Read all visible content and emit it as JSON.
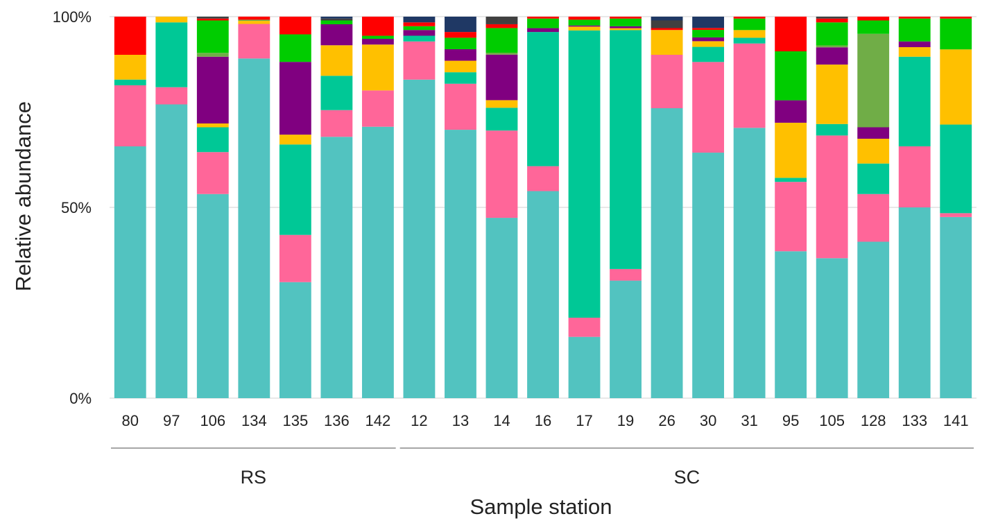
{
  "chart_data": {
    "type": "bar",
    "stacked": true,
    "normalized": true,
    "title": "",
    "xlabel": "Sample station",
    "ylabel": "Relative abundance",
    "ylim": [
      0,
      100
    ],
    "yticks": [
      {
        "value": 0,
        "label": "0%"
      },
      {
        "value": 50,
        "label": "50%"
      },
      {
        "value": 100,
        "label": "100%"
      }
    ],
    "grid": "horizontal",
    "legend": "none",
    "categories": [
      "80",
      "97",
      "106",
      "134",
      "135",
      "136",
      "142",
      "12",
      "13",
      "14",
      "16",
      "17",
      "19",
      "26",
      "30",
      "31",
      "95",
      "105",
      "128",
      "133",
      "141"
    ],
    "groups": [
      {
        "label": "RS",
        "start": 0,
        "end": 6
      },
      {
        "label": "SC",
        "start": 7,
        "end": 20
      }
    ],
    "series": [
      {
        "color": "#52c3c0",
        "values": [
          66,
          77,
          53.5,
          88.5,
          29.5,
          68.5,
          71,
          83.5,
          70,
          47.5,
          54,
          16,
          30.5,
          76,
          65,
          70.5,
          36,
          36.5,
          41,
          50,
          47
        ]
      },
      {
        "color": "#ff6699",
        "values": [
          16,
          4.5,
          11,
          9,
          12,
          7,
          9.5,
          10,
          12,
          23,
          6.5,
          5,
          3,
          14,
          24,
          22,
          17,
          32,
          12.5,
          16,
          1
        ]
      },
      {
        "color": "#00c896",
        "values": [
          1.5,
          17,
          6.5,
          0,
          23,
          9,
          0,
          1.5,
          3,
          6,
          35,
          75,
          62,
          0,
          4,
          1.5,
          1,
          3,
          8,
          23.5,
          23
        ]
      },
      {
        "color": "#ffc000",
        "values": [
          6.5,
          1.5,
          1,
          0.8,
          2.5,
          8,
          12,
          0,
          3,
          2,
          0,
          1,
          0.5,
          6.5,
          1.5,
          2,
          13.5,
          15.5,
          6.5,
          2.5,
          19.5
        ]
      },
      {
        "color": "#800080",
        "values": [
          0,
          0,
          17.5,
          0,
          18.5,
          5.5,
          1.5,
          1.5,
          3,
          12,
          1,
          0.3,
          0.5,
          0,
          1,
          0,
          5.5,
          4.5,
          3,
          1.5,
          0
        ]
      },
      {
        "color": "#70ad47",
        "values": [
          0,
          0,
          1,
          0.3,
          0,
          0,
          0,
          0,
          0,
          0.5,
          0,
          0,
          0,
          0,
          0,
          0,
          0,
          0.5,
          24.5,
          0,
          0
        ]
      },
      {
        "color": "#00cc00",
        "values": [
          0,
          0,
          8.5,
          0,
          7,
          1,
          0.8,
          1,
          3,
          6.5,
          2.5,
          1.5,
          2,
          0,
          2,
          3,
          12,
          6,
          3.5,
          6,
          8
        ]
      },
      {
        "color": "#ff0000",
        "values": [
          10,
          0,
          0.5,
          0.8,
          4.5,
          0,
          5,
          1,
          1.5,
          1,
          0.5,
          0.8,
          0.5,
          0.5,
          0.5,
          0.5,
          8.5,
          1,
          1,
          0.5,
          0.5
        ]
      },
      {
        "color": "#404040",
        "values": [
          0,
          0,
          0.5,
          0,
          0,
          0.5,
          0,
          0,
          0,
          2,
          0,
          0,
          0,
          2,
          0,
          0,
          0,
          0.5,
          0,
          0,
          0
        ]
      },
      {
        "color": "#1f3864",
        "values": [
          0,
          0,
          0,
          0,
          0,
          0.5,
          0,
          1.5,
          4,
          0,
          0,
          0,
          0,
          1,
          3,
          0,
          0,
          0,
          0,
          0,
          0
        ]
      }
    ]
  }
}
